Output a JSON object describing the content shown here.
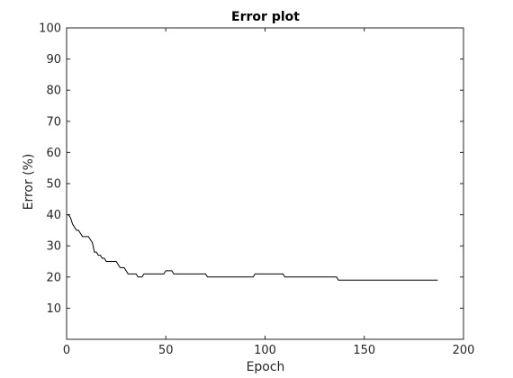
{
  "chart_data": {
    "type": "line",
    "title": "Error plot",
    "xlabel": "Epoch",
    "ylabel": "Error (%)",
    "xlim": [
      0,
      200
    ],
    "ylim": [
      0,
      100
    ],
    "xticks": [
      0,
      50,
      100,
      150,
      200
    ],
    "yticks": [
      10,
      20,
      30,
      40,
      50,
      60,
      70,
      80,
      90,
      100
    ],
    "grid": false,
    "legend": "none",
    "line_color": "#000000",
    "series": [
      {
        "x": [
          0,
          1,
          2,
          3,
          4,
          5,
          6,
          7,
          8,
          9,
          10,
          11,
          12,
          13,
          14,
          15,
          16,
          17,
          18,
          19,
          20,
          22,
          24,
          25,
          26,
          27,
          28,
          29,
          30,
          31,
          32,
          33,
          34,
          35,
          36,
          37,
          38,
          39,
          40,
          42,
          45,
          48,
          49,
          50,
          51,
          52,
          53,
          54,
          55,
          56,
          60,
          65,
          70,
          71,
          75,
          80,
          90,
          94,
          95,
          100,
          105,
          109,
          110,
          115,
          120,
          130,
          136,
          137,
          140,
          150,
          160,
          170,
          180,
          187
        ],
        "y": [
          40,
          40,
          39,
          37,
          36,
          35,
          35,
          34,
          33,
          33,
          33,
          33,
          32,
          31,
          28,
          28,
          27,
          27,
          26,
          26,
          25,
          25,
          25,
          25,
          24,
          23,
          23,
          23,
          22,
          21,
          21,
          21,
          21,
          21,
          20,
          20,
          20,
          21,
          21,
          21,
          21,
          21,
          21,
          22,
          22,
          22,
          22,
          21,
          21,
          21,
          21,
          21,
          21,
          20,
          20,
          20,
          20,
          20,
          21,
          21,
          21,
          21,
          20,
          20,
          20,
          20,
          20,
          19,
          19,
          19,
          19,
          19,
          19,
          19
        ]
      }
    ]
  }
}
